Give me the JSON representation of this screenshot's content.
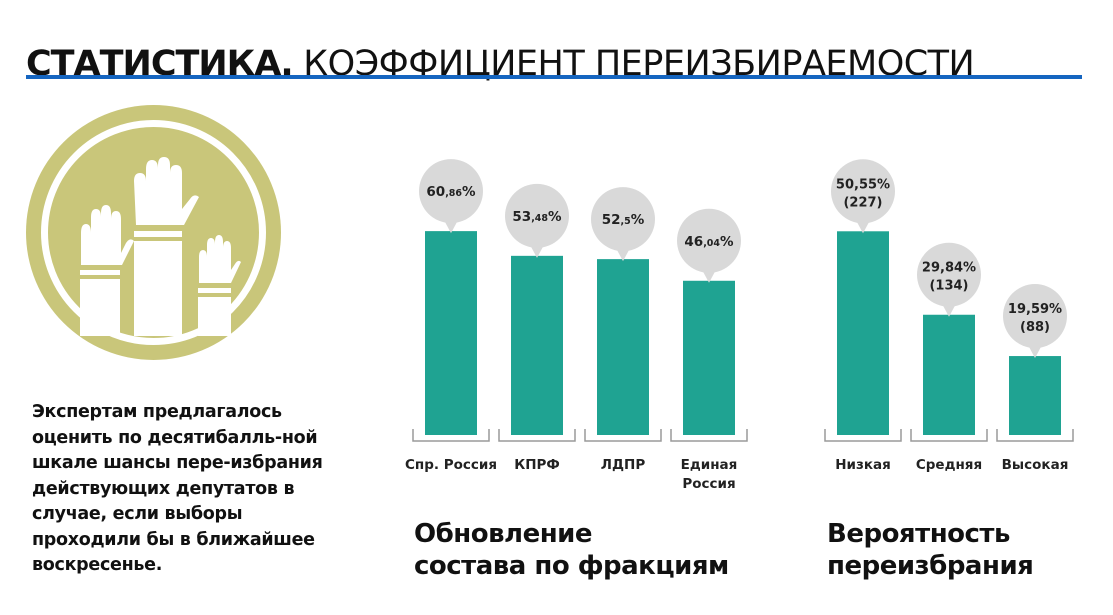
{
  "header": {
    "title_bold": "СТАТИСТИКА.",
    "title_rest": " КОЭФФИЦИЕНТ ПЕРЕИЗБИРАЕМОСТИ"
  },
  "colors": {
    "bar": "#1fa392",
    "bubble": "#d9d9d9",
    "accent_rule": "#1565c0",
    "emblem": "#c9c67a"
  },
  "emblem": {
    "icon": "raised-hands-icon"
  },
  "description": "Экспертам предлагалось оценить по десятибалль-ной шкале шансы пере-избрания действующих депутатов в случае, если выборы проходили бы в ближайшее воскресенье.",
  "chart_data": [
    {
      "type": "bar",
      "title": "Обновление\nсостава по фракциям",
      "categories": [
        "Спр. Россия",
        "КПРФ",
        "ЛДПР",
        "Единая Россия"
      ],
      "category_lines": [
        [
          "Спр. Россия"
        ],
        [
          "КПРФ"
        ],
        [
          "ЛДПР"
        ],
        [
          "Единая",
          "Россия"
        ]
      ],
      "values": [
        60.86,
        53.48,
        52.5,
        46.04
      ],
      "unit": "%",
      "labels": [
        {
          "main": "60",
          "small": ",86",
          "suffix": "%"
        },
        {
          "main": "53",
          "small": ",48",
          "suffix": "%"
        },
        {
          "main": "52",
          "small": ",5",
          "suffix": "%"
        },
        {
          "main": "46",
          "small": ",04",
          "suffix": "%"
        }
      ],
      "ylim": [
        0,
        75
      ]
    },
    {
      "type": "bar",
      "title": "Вероятность\nпереизбрания",
      "categories": [
        "Низкая",
        "Средняя",
        "Высокая"
      ],
      "category_lines": [
        [
          "Низкая"
        ],
        [
          "Средняя"
        ],
        [
          "Высокая"
        ]
      ],
      "values": [
        50.55,
        29.84,
        19.59
      ],
      "counts": [
        227,
        134,
        88
      ],
      "unit": "%",
      "labels": [
        {
          "lines": [
            "50,55%",
            "(227)"
          ]
        },
        {
          "lines": [
            "29,84%",
            "(134)"
          ]
        },
        {
          "lines": [
            "19,59%",
            "(88)"
          ]
        }
      ],
      "ylim": [
        0,
        60
      ]
    }
  ]
}
